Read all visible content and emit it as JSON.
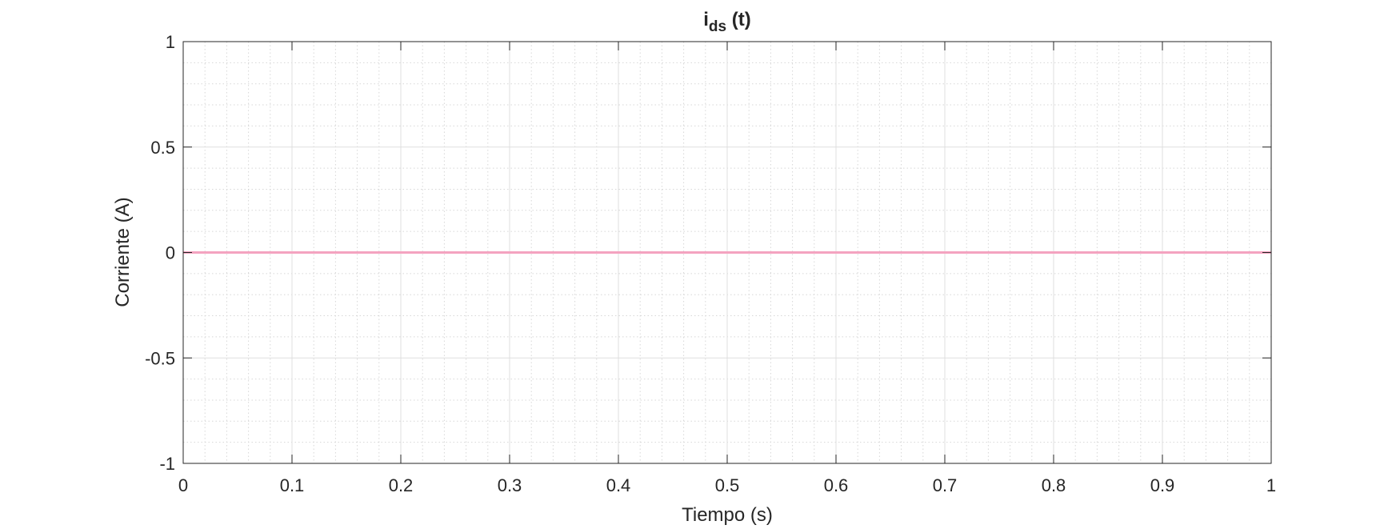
{
  "chart_data": {
    "type": "line",
    "title": "i",
    "title_subscript": "ds",
    "title_suffix": " (t)",
    "xlabel": "Tiempo (s)",
    "ylabel": "Corriente (A)",
    "xlim": [
      0,
      1
    ],
    "ylim": [
      -1,
      1
    ],
    "xticks": [
      0,
      0.1,
      0.2,
      0.3,
      0.4,
      0.5,
      0.6,
      0.7,
      0.8,
      0.9,
      1
    ],
    "xtick_labels": [
      "0",
      "0.1",
      "0.2",
      "0.3",
      "0.4",
      "0.5",
      "0.6",
      "0.7",
      "0.8",
      "0.9",
      "1"
    ],
    "yticks": [
      -1,
      -0.5,
      0,
      0.5,
      1
    ],
    "ytick_labels": [
      "-1",
      "-0.5",
      "0",
      "0.5",
      "1"
    ],
    "grid": true,
    "minor_grid": true,
    "series": [
      {
        "color": "#f4a3c0",
        "x": [
          0,
          1
        ],
        "y": [
          0,
          0
        ]
      }
    ]
  }
}
